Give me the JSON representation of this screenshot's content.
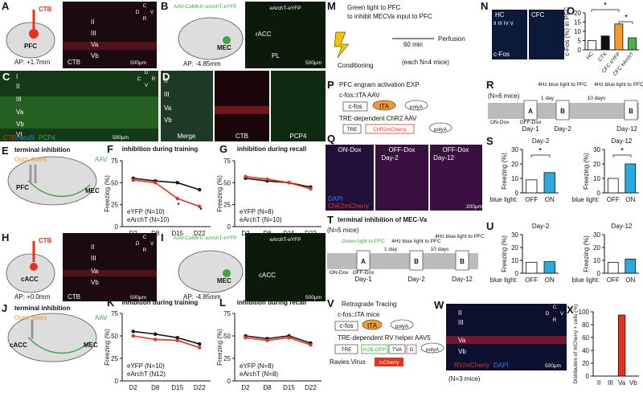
{
  "figure": {
    "A": {
      "label": "A",
      "tracer": "CTB",
      "region": "PFC",
      "ap": "AP: +1.7mm",
      "layers": [
        "II",
        "III",
        "Va",
        "Vb"
      ],
      "channel": "CTB",
      "scale": "500μm",
      "compass": [
        "C",
        "D",
        "V",
        "R"
      ]
    },
    "B": {
      "label": "B",
      "virus": "AAV-CaMKII::eArchT-eYFP",
      "region": "MEC",
      "ap": "AP: -4.85mm",
      "channel": "eArchT-eYFP",
      "areas": [
        "rACC",
        "PL"
      ],
      "scale": "500μm"
    },
    "C": {
      "label": "C",
      "layers": [
        "I",
        "II",
        "III",
        "Va",
        "Vb",
        "VI"
      ],
      "channels": [
        "CTB",
        "/NeuN",
        "PCP4"
      ],
      "scale": "500μm",
      "compass": [
        "D",
        "C",
        "R",
        "V"
      ]
    },
    "D": {
      "label": "D",
      "layers": [
        "II",
        "III",
        "Va",
        "Vb"
      ],
      "channels": [
        "Merge",
        "CTB",
        "PCP4"
      ]
    },
    "E": {
      "label": "E",
      "title": "terminal inhibition",
      "fibers": "Optic fibers",
      "virus": "AAV",
      "regions": [
        "PFC",
        "MEC"
      ]
    },
    "H": {
      "label": "H",
      "tracer": "CTB",
      "region": "cACC",
      "ap": "AP: +0.0mm",
      "layers": [
        "II",
        "III",
        "Va",
        "Vb"
      ],
      "channel": "CTB",
      "scale": "500μm",
      "compass": [
        "C",
        "D",
        "V",
        "R"
      ]
    },
    "I": {
      "label": "I",
      "virus": "AAV-CaMKII::eArchT-eYFP",
      "region": "MEC",
      "ap": "AP: -4.85mm",
      "channel": "eArchT-eYFP",
      "areas": [
        "cACC"
      ],
      "scale": "500μm"
    },
    "J": {
      "label": "J",
      "title": "terminal inhibition",
      "fibers": "Optic fibers",
      "virus": "AAV",
      "regions": [
        "cACC",
        "MEC"
      ]
    },
    "M": {
      "label": "M",
      "lines": [
        "Green light to PFC",
        "to inhibit MECVa input to PFC"
      ],
      "step1": "Conditioning",
      "interval": "60 min",
      "step2": "Perfusion",
      "note": "(each N=4 mice)"
    },
    "N": {
      "label": "N",
      "groups": [
        "HC",
        "CFC"
      ],
      "layers": "II III IV V",
      "channel": "c-Fos"
    },
    "P": {
      "label": "P",
      "title": "PFC engram activation EXP",
      "construct1": "c-fos::tTA AAV",
      "parts1": [
        "c-fos",
        "tTA",
        "polyA"
      ],
      "construct2": "TRE-dependent ChR2 AAV",
      "parts2": [
        "TRE",
        "ChR2mCherry",
        "polyA"
      ]
    },
    "Q": {
      "label": "Q",
      "conditions": [
        "ON-Dox",
        "OFF-Dox",
        "OFF-Dox"
      ],
      "days": [
        "Day-2",
        "Day-12"
      ],
      "channels": [
        "DAPI",
        "ChR2mCherry"
      ],
      "scale": "200μm"
    },
    "R": {
      "label": "R",
      "note": "(N=6 mice)",
      "light": "4Hz blue light to PFC",
      "boxes": [
        "A",
        "B",
        "B"
      ],
      "dox": [
        "ON-Dox",
        "OFF-Dox"
      ],
      "days": [
        "Day-1",
        "Day-2",
        "Day-12"
      ],
      "intervals": [
        "1 day",
        "10 days"
      ]
    },
    "T": {
      "label": "T",
      "title": "terminal inhibition of MEC-Va",
      "note": "(N=5 mice)",
      "light_green": "Green light to PFC",
      "light": "4Hz blue light to PFC",
      "boxes": [
        "A",
        "B",
        "B"
      ],
      "dox": [
        "ON-Dox",
        "OFF-Dox"
      ],
      "days": [
        "Day-1",
        "Day-2",
        "Day-12"
      ],
      "intervals": [
        "1 day",
        "10 days"
      ]
    },
    "V": {
      "label": "V",
      "title": "Retrograde Tracing",
      "construct1": "c-fos::tTA mice",
      "parts1": [
        "c-fos",
        "tTA",
        "polyA"
      ],
      "construct2": "TRE-dependent RV helper AAV5",
      "parts2": [
        "TRE",
        "H2B-GFP",
        "TVA",
        "G",
        "polyA"
      ],
      "virus": "Ravies Virus",
      "virus_part": "mCherry",
      "note": "(N=3 mice)"
    },
    "W": {
      "label": "W",
      "layers": [
        "II",
        "III",
        "Va",
        "Vb"
      ],
      "channels": [
        "RV/mCherry",
        "DAPI"
      ],
      "scale": "500μm",
      "compass": [
        "C",
        "D",
        "V",
        "R"
      ]
    }
  },
  "chart_data": [
    {
      "type": "line",
      "panel": "F",
      "title": "inhibition during training",
      "y_label": "Freezing (%)",
      "categories": [
        "D2",
        "D8",
        "D15",
        "D22"
      ],
      "ylim": [
        0,
        75
      ],
      "yticks": [
        0,
        25,
        50,
        75
      ],
      "series": [
        {
          "name": "eYFP (N=10)",
          "color": "#111111",
          "values": [
            55,
            52,
            50,
            42
          ]
        },
        {
          "name": "eArchT (N=10)",
          "color": "#e8321e",
          "values": [
            53,
            50,
            32,
            23
          ]
        }
      ],
      "annotations": [
        "*",
        "*"
      ]
    },
    {
      "type": "line",
      "panel": "G",
      "title": "inhibition during recall",
      "y_label": "Freezing (%)",
      "categories": [
        "D2",
        "D8",
        "D15",
        "D22"
      ],
      "ylim": [
        0,
        75
      ],
      "yticks": [
        0,
        25,
        50,
        75
      ],
      "series": [
        {
          "name": "eYFP (N=8)",
          "color": "#111111",
          "values": [
            55,
            52,
            50,
            45
          ]
        },
        {
          "name": "eArchT (N=10)",
          "color": "#e8321e",
          "values": [
            57,
            54,
            50,
            43
          ]
        }
      ]
    },
    {
      "type": "line",
      "panel": "K",
      "title": "inhibition during training",
      "y_label": "Freezing (%)",
      "categories": [
        "D2",
        "D8",
        "D15",
        "D22"
      ],
      "ylim": [
        0,
        75
      ],
      "yticks": [
        0,
        25,
        50,
        75
      ],
      "series": [
        {
          "name": "eYFP (N=10)",
          "color": "#111111",
          "values": [
            55,
            52,
            48,
            41
          ]
        },
        {
          "name": "eArchT (N12)",
          "color": "#e8321e",
          "values": [
            50,
            46,
            45,
            37
          ]
        }
      ]
    },
    {
      "type": "line",
      "panel": "L",
      "title": "inhibition during recall",
      "y_label": "Freezing (%)",
      "categories": [
        "D2",
        "D8",
        "D15",
        "D22"
      ],
      "ylim": [
        0,
        75
      ],
      "yticks": [
        0,
        25,
        50,
        75
      ],
      "series": [
        {
          "name": "eYFP (N=8)",
          "color": "#111111",
          "values": [
            50,
            47,
            50,
            42
          ]
        },
        {
          "name": "eArchT (N=8)",
          "color": "#e8321e",
          "values": [
            48,
            45,
            48,
            40
          ]
        }
      ]
    },
    {
      "type": "bar",
      "panel": "O",
      "y_label": "c-Fos (%) in PFC",
      "categories": [
        "HC",
        "CTX",
        "CFC eYFP",
        "CFC eArchT"
      ],
      "values": [
        5,
        7.5,
        14,
        6.5
      ],
      "colors": [
        "#ffffff",
        "#111111",
        "#f39a2b",
        "#4cae4c"
      ],
      "label_colors": [
        "#111111",
        "#111111",
        "#f39a2b",
        "#4cae4c"
      ],
      "ylim": [
        0,
        20
      ],
      "yticks": [
        0,
        5,
        10,
        15,
        20
      ],
      "annotations": [
        "*",
        "*"
      ]
    },
    {
      "type": "bar",
      "panel": "S",
      "title": "Day-2",
      "y_label": "Freezing (%)",
      "x_label": "blue light:",
      "categories": [
        "OFF",
        "ON"
      ],
      "values": [
        9,
        14
      ],
      "colors": [
        "#ffffff",
        "#2aa8e0"
      ],
      "ylim": [
        0,
        30
      ],
      "yticks": [
        0,
        10,
        20,
        30
      ],
      "annotations": [
        "*"
      ]
    },
    {
      "type": "bar",
      "title": "Day-12",
      "y_label": "Freezing (%)",
      "x_label": "blue light:",
      "categories": [
        "OFF",
        "ON"
      ],
      "values": [
        10,
        20
      ],
      "colors": [
        "#ffffff",
        "#2aa8e0"
      ],
      "ylim": [
        0,
        30
      ],
      "yticks": [
        0,
        10,
        20,
        30
      ],
      "annotations": [
        "*"
      ]
    },
    {
      "type": "bar",
      "panel": "U",
      "title": "Day-2",
      "y_label": "Freezing (%)",
      "x_label": "blue light:",
      "categories": [
        "OFF",
        "ON"
      ],
      "values": [
        8.5,
        9
      ],
      "colors": [
        "#ffffff",
        "#2aa8e0"
      ],
      "ylim": [
        0,
        30
      ],
      "yticks": [
        0,
        10,
        20,
        30
      ]
    },
    {
      "type": "bar",
      "title": "Day-12",
      "y_label": "Freezing (%)",
      "x_label": "blue light:",
      "categories": [
        "OFF",
        "ON"
      ],
      "values": [
        8.5,
        11
      ],
      "colors": [
        "#ffffff",
        "#2aa8e0"
      ],
      "ylim": [
        0,
        30
      ],
      "yticks": [
        0,
        10,
        20,
        30
      ]
    },
    {
      "type": "bar",
      "panel": "X",
      "y_label": "Distribution of mCherry + cells (%)",
      "categories": [
        "II",
        "III",
        "Va",
        "Vb"
      ],
      "values": [
        0,
        0,
        95,
        0
      ],
      "colors": [
        "#e8321e",
        "#e8321e",
        "#e8321e",
        "#e8321e"
      ],
      "ylim": [
        0,
        100
      ],
      "yticks": [
        0,
        20,
        40,
        60,
        80,
        100
      ]
    }
  ]
}
